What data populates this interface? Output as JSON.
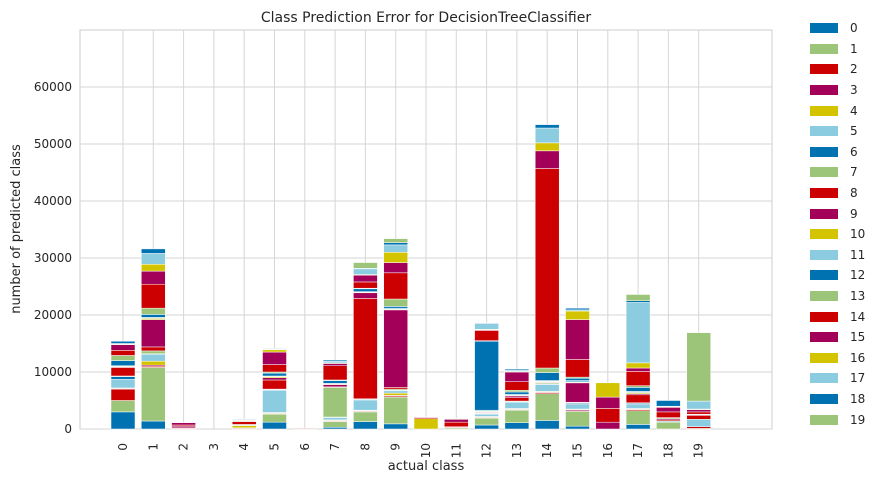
{
  "chart_data": {
    "type": "bar",
    "stacked": true,
    "title": "Class Prediction Error for DecisionTreeClassifier",
    "xlabel": "actual class",
    "ylabel": "number of predicted class",
    "ylim": [
      0,
      70000
    ],
    "yticks": [
      "0",
      "10000",
      "20000",
      "30000",
      "40000",
      "50000",
      "60000"
    ],
    "categories": [
      "0",
      "1",
      "2",
      "3",
      "4",
      "5",
      "6",
      "7",
      "8",
      "9",
      "10",
      "11",
      "12",
      "13",
      "14",
      "15",
      "16",
      "17",
      "18",
      "19"
    ],
    "grid": true,
    "legend_position": "outside-right",
    "colors": [
      "#0072b2",
      "#9dc57a",
      "#cc0000",
      "#a30059",
      "#d4c400",
      "#8ccce0",
      "#0072b2",
      "#9dc57a",
      "#cc0000",
      "#a30059",
      "#d4c400",
      "#8ccce0",
      "#0072b2",
      "#9dc57a",
      "#cc0000",
      "#a30059",
      "#d4c400",
      "#8ccce0",
      "#0072b2",
      "#9dc57a"
    ],
    "series": [
      {
        "name": "0",
        "values": [
          3000,
          1400,
          0,
          0,
          0,
          1200,
          0,
          300,
          1300,
          900,
          0,
          0,
          700,
          1100,
          1500,
          500,
          0,
          800,
          0,
          0
        ]
      },
      {
        "name": "1",
        "values": [
          2000,
          9400,
          0,
          0,
          0,
          1400,
          0,
          1000,
          1700,
          4700,
          0,
          200,
          1200,
          2200,
          4700,
          2600,
          0,
          2400,
          1200,
          100
        ]
      },
      {
        "name": "2",
        "values": [
          2000,
          200,
          100,
          0,
          0,
          100,
          0,
          100,
          100,
          200,
          0,
          100,
          100,
          100,
          200,
          100,
          0,
          200,
          0,
          300
        ]
      },
      {
        "name": "3",
        "values": [
          100,
          200,
          0,
          0,
          0,
          100,
          0,
          100,
          100,
          100,
          0,
          0,
          100,
          100,
          100,
          200,
          0,
          100,
          0,
          0
        ]
      },
      {
        "name": "4",
        "values": [
          100,
          700,
          0,
          0,
          0,
          100,
          0,
          100,
          100,
          400,
          0,
          0,
          100,
          100,
          100,
          100,
          0,
          100,
          0,
          0
        ]
      },
      {
        "name": "5",
        "values": [
          1500,
          1200,
          0,
          0,
          0,
          3900,
          0,
          400,
          1800,
          400,
          0,
          0,
          400,
          1100,
          1200,
          800,
          0,
          700,
          200,
          1300
        ]
      },
      {
        "name": "6",
        "values": [
          500,
          100,
          0,
          0,
          0,
          100,
          0,
          100,
          100,
          100,
          0,
          0,
          100,
          100,
          100,
          200,
          0,
          200,
          0,
          0
        ]
      },
      {
        "name": "7",
        "values": [
          100,
          500,
          0,
          0,
          0,
          100,
          0,
          5200,
          100,
          200,
          0,
          0,
          100,
          100,
          200,
          100,
          0,
          100,
          0,
          0
        ]
      },
      {
        "name": "8",
        "values": [
          1500,
          700,
          100,
          0,
          100,
          1600,
          0,
          100,
          17600,
          300,
          0,
          100,
          100,
          600,
          100,
          100,
          0,
          1400,
          200,
          700
        ]
      },
      {
        "name": "9",
        "values": [
          100,
          4800,
          300,
          0,
          100,
          400,
          0,
          400,
          1000,
          13600,
          0,
          0,
          100,
          300,
          100,
          3400,
          1200,
          200,
          200,
          0
        ]
      },
      {
        "name": "10",
        "values": [
          100,
          200,
          0,
          0,
          400,
          200,
          0,
          100,
          100,
          100,
          1800,
          0,
          100,
          100,
          100,
          100,
          0,
          200,
          0,
          0
        ]
      },
      {
        "name": "11",
        "values": [
          100,
          200,
          0,
          0,
          0,
          100,
          0,
          100,
          100,
          200,
          0,
          0,
          200,
          200,
          100,
          300,
          0,
          200,
          0,
          0
        ]
      },
      {
        "name": "12",
        "values": [
          900,
          500,
          0,
          0,
          100,
          500,
          0,
          500,
          500,
          300,
          0,
          0,
          12100,
          400,
          1400,
          400,
          0,
          700,
          0,
          100
        ]
      },
      {
        "name": "13",
        "values": [
          900,
          1100,
          0,
          0,
          100,
          200,
          0,
          100,
          100,
          1300,
          0,
          0,
          100,
          300,
          800,
          200,
          0,
          300,
          200,
          100
        ]
      },
      {
        "name": "14",
        "values": [
          900,
          4200,
          200,
          0,
          500,
          1300,
          100,
          2500,
          1100,
          4600,
          200,
          800,
          1800,
          1500,
          35000,
          3100,
          2400,
          2500,
          1000,
          400
        ]
      },
      {
        "name": "15",
        "values": [
          1000,
          2300,
          400,
          0,
          100,
          2200,
          0,
          400,
          1200,
          1800,
          100,
          500,
          100,
          1700,
          3100,
          7000,
          2000,
          600,
          800,
          400
        ]
      },
      {
        "name": "16",
        "values": [
          100,
          1200,
          0,
          0,
          100,
          400,
          0,
          100,
          100,
          1800,
          0,
          100,
          100,
          100,
          1400,
          1500,
          2500,
          900,
          100,
          100
        ]
      },
      {
        "name": "17",
        "values": [
          100,
          1900,
          0,
          0,
          100,
          100,
          0,
          300,
          1000,
          1300,
          0,
          100,
          1000,
          200,
          2600,
          200,
          0,
          10600,
          100,
          1400
        ]
      },
      {
        "name": "18",
        "values": [
          400,
          800,
          0,
          0,
          100,
          100,
          0,
          200,
          100,
          400,
          0,
          0,
          100,
          200,
          600,
          300,
          0,
          300,
          1000,
          0
        ]
      },
      {
        "name": "19",
        "values": [
          0,
          0,
          0,
          0,
          0,
          0,
          0,
          0,
          1000,
          700,
          0,
          0,
          0,
          0,
          0,
          0,
          0,
          1100,
          0,
          12000
        ]
      }
    ]
  }
}
